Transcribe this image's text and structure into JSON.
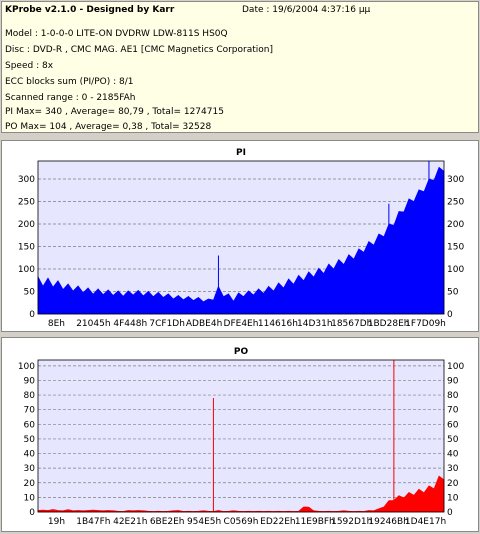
{
  "header": {
    "title": "KProbe v2.1.0 - Designed by Karr",
    "date": "Date : 19/6/2004 4:37:16 μμ",
    "model": "Model : 1-0-0-0 LITE-ON DVDRW LDW-811S   HS0Q",
    "disc": "Disc : DVD-R , CMC MAG. AE1 [CMC Magnetics Corporation]",
    "speed": "Speed : 8x",
    "ecc": "ECC blocks sum (PI/PO) : 8/1",
    "range": "Scanned range : 0 - 2185FAh",
    "pi_stats": "PI Max= 340 , Average= 80,79 , Total= 1274715",
    "po_stats": "PO Max= 104 , Average= 0,38 , Total= 32528"
  },
  "colors": {
    "pi_fill": "#0000ff",
    "po_fill": "#ff0000",
    "plot_bg": "#e6e6ff",
    "grid": "#7f7f7f",
    "info_bg": "#ffffe6"
  },
  "chart_data": [
    {
      "type": "area",
      "title": "PI",
      "ylim": [
        0,
        340
      ],
      "yticks": [
        0,
        50,
        100,
        150,
        200,
        250,
        300
      ],
      "xtick_labels": [
        "8Eh",
        "21045h",
        "4F448h",
        "7CF1Dh",
        "ADBE4h",
        "DFE4Eh",
        "114616h",
        "14D31h",
        "18567Dh",
        "1BD28Eh",
        "1F7D09h"
      ],
      "grid": true,
      "series": [
        {
          "values": [
            75,
            70,
            72,
            68,
            66,
            62,
            60,
            58,
            56,
            54,
            52,
            50,
            50,
            49,
            48,
            47,
            46,
            45,
            46,
            48,
            47,
            46,
            45,
            44,
            43,
            42,
            40,
            38,
            37,
            36,
            35,
            34,
            33,
            31,
            30,
            35,
            55,
            44,
            40,
            32,
            42,
            44,
            46,
            48,
            50,
            52,
            55,
            58,
            62,
            66,
            70,
            74,
            78,
            82,
            86,
            90,
            94,
            98,
            103,
            108,
            113,
            118,
            124,
            130,
            137,
            145,
            153,
            161,
            170,
            180,
            192,
            205,
            220,
            235,
            248,
            258,
            268,
            280,
            292,
            305,
            318,
            325
          ],
          "spikes": [
            {
              "index": 36,
              "value": 130
            },
            {
              "index": 70,
              "value": 245
            },
            {
              "index": 78,
              "value": 340
            }
          ]
        }
      ]
    },
    {
      "type": "area",
      "title": "PO",
      "ylim": [
        0,
        104
      ],
      "yticks": [
        0,
        10,
        20,
        30,
        40,
        50,
        60,
        70,
        80,
        90,
        100
      ],
      "xtick_labels": [
        "19h",
        "1B47Fh",
        "42E21h",
        "6BE2Eh",
        "954E5h",
        "C0569h",
        "ED22Eh",
        "11E9BFh",
        "1592D1h",
        "19246Bh",
        "1D4E17h"
      ],
      "grid": true,
      "series": [
        {
          "values": [
            1,
            1.5,
            1,
            2,
            1,
            1,
            1.5,
            1,
            1,
            1,
            1,
            1.5,
            1,
            1,
            1,
            1,
            0.5,
            0.5,
            1,
            1,
            1,
            1,
            0.5,
            0.5,
            0.5,
            0.5,
            0.5,
            1,
            1,
            0.5,
            0.5,
            0.5,
            0.5,
            1,
            0.5,
            0.5,
            1,
            0.5,
            0.5,
            1,
            0.5,
            0.5,
            0.5,
            0.5,
            0.5,
            0.5,
            0.5,
            0.5,
            0.5,
            0.5,
            0.5,
            0.5,
            0.5,
            4,
            3,
            1,
            0.5,
            0.5,
            0.5,
            0.5,
            0.5,
            1,
            0.5,
            0.5,
            0.5,
            0.5,
            1,
            1,
            2,
            4,
            7,
            9,
            10,
            11,
            12,
            13,
            14,
            15,
            16,
            18,
            22,
            25
          ],
          "spikes": [
            {
              "index": 35,
              "value": 78
            },
            {
              "index": 71,
              "value": 104
            }
          ]
        }
      ]
    }
  ]
}
